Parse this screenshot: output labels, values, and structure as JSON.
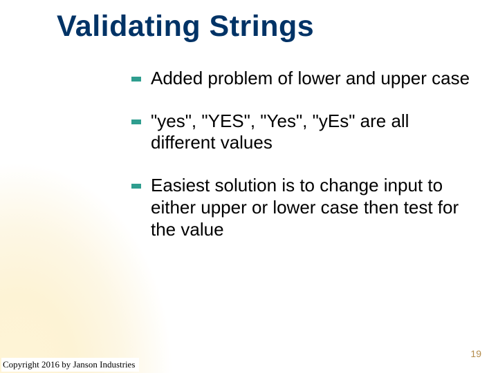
{
  "slide": {
    "title": "Validating Strings",
    "title_color": "#003366",
    "title_fontsize": 43,
    "bullets": [
      {
        "text": "Added problem of lower and upper case"
      },
      {
        "text": "\"yes\", \"YES\", \"Yes\", \"yEs\" are all different values"
      },
      {
        "text": "Easiest solution is to change input to either upper or lower case then test for the value"
      }
    ],
    "bullet_marker_color": "#2f9e8f",
    "bullet_fontsize": 26,
    "bullet_text_color": "#000000",
    "page_number": "19",
    "page_number_color": "#b38b4a",
    "copyright": "Copyright 2016 by Janson Industries",
    "background_gradient": {
      "inner_color": "#fff4d6",
      "outer_color": "#ffffff"
    }
  }
}
